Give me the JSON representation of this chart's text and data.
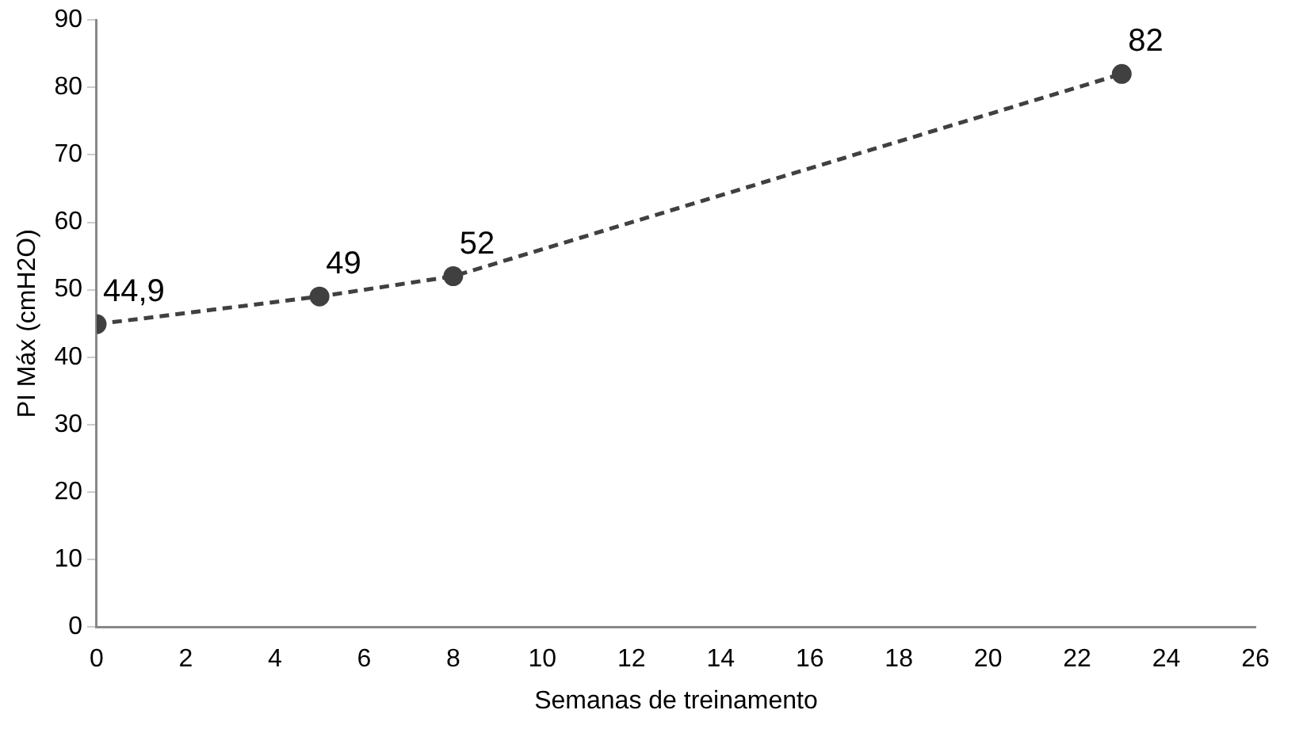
{
  "chart_data": {
    "type": "line",
    "xlabel": "Semanas de treinamento",
    "ylabel": "PI Máx (cmH2O)",
    "x": [
      0,
      5,
      8,
      23
    ],
    "series": [
      {
        "color": "#404040",
        "values": [
          44.9,
          49,
          52,
          82
        ],
        "value_labels": [
          "44,9",
          "49",
          "52",
          "82"
        ]
      }
    ],
    "xlim": [
      0,
      26
    ],
    "xticks": [
      0,
      2,
      4,
      6,
      8,
      10,
      12,
      14,
      16,
      18,
      20,
      22,
      24,
      26
    ],
    "ylim": [
      0,
      90
    ],
    "yticks": [
      0,
      10,
      20,
      30,
      40,
      50,
      60,
      70,
      80,
      90
    ],
    "grid": false,
    "legend": false,
    "marker": "circle",
    "line_style": "dashed"
  }
}
